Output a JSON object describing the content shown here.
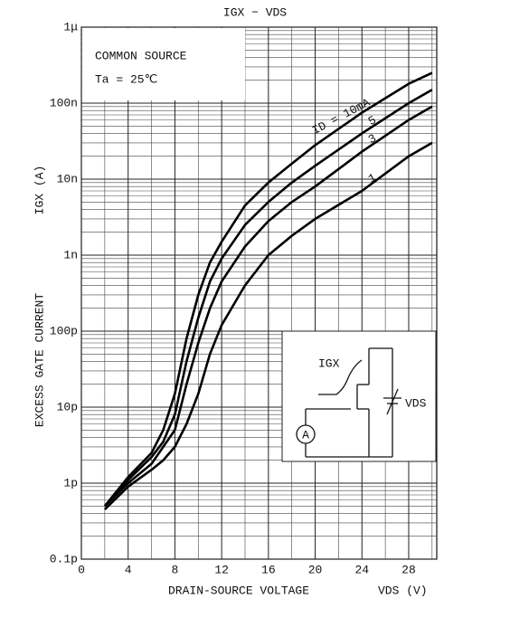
{
  "chart_data": {
    "type": "line",
    "title": "IGX − VDS",
    "x_label": "DRAIN-SOURCE VOLTAGE",
    "x_unit_label": "VDS (V)",
    "y_label": "EXCESS GATE CURRENT",
    "y_unit_label": "IGX (A)",
    "annotations": [
      "COMMON SOURCE",
      "Ta = 25℃"
    ],
    "inset_labels": [
      "IGX",
      "VDS",
      "A"
    ],
    "log_y": true,
    "grid": true,
    "xlim": [
      0,
      30.4
    ],
    "xticks": [
      0,
      4,
      8,
      12,
      16,
      20,
      24,
      28
    ],
    "ylim": [
      1e-13,
      1e-06
    ],
    "yticks": [
      {
        "value": 1e-13,
        "label": "0.1p"
      },
      {
        "value": 1e-12,
        "label": "1p"
      },
      {
        "value": 1e-11,
        "label": "10p"
      },
      {
        "value": 1e-10,
        "label": "100p"
      },
      {
        "value": 1e-09,
        "label": "1n"
      },
      {
        "value": 1e-08,
        "label": "10n"
      },
      {
        "value": 1e-07,
        "label": "100n"
      },
      {
        "value": 1e-06,
        "label": "1μ"
      }
    ],
    "x": [
      2,
      4,
      6,
      7,
      8,
      9,
      10,
      11,
      12,
      14,
      16,
      18,
      20,
      24,
      28,
      30
    ],
    "series": [
      {
        "name": "ID = 10mA",
        "color": "#000000",
        "values": [
          5e-13,
          1.2e-12,
          2.5e-12,
          5e-12,
          1.5e-11,
          8e-11,
          3e-10,
          8e-10,
          1.5e-09,
          4.5e-09,
          9e-09,
          1.6e-08,
          2.8e-08,
          7.5e-08,
          1.8e-07,
          2.5e-07
        ]
      },
      {
        "name": "5",
        "color": "#000000",
        "values": [
          5e-13,
          1.1e-12,
          2.2e-12,
          3.5e-12,
          8e-12,
          4e-11,
          1.5e-10,
          4.5e-10,
          9e-10,
          2.5e-09,
          5e-09,
          9e-09,
          1.5e-08,
          4e-08,
          1e-07,
          1.5e-07
        ]
      },
      {
        "name": "3",
        "color": "#000000",
        "values": [
          5e-13,
          1e-12,
          1.8e-12,
          3e-12,
          5e-12,
          2e-11,
          7e-11,
          2e-10,
          4.5e-10,
          1.3e-09,
          2.8e-09,
          5e-09,
          8e-09,
          2.3e-08,
          6e-08,
          9e-08
        ]
      },
      {
        "name": "1",
        "color": "#000000",
        "values": [
          4.5e-13,
          9e-13,
          1.5e-12,
          2e-12,
          3e-12,
          6e-12,
          1.5e-11,
          5e-11,
          1.2e-10,
          4e-10,
          1e-09,
          1.8e-09,
          3e-09,
          7e-09,
          2e-08,
          3e-08
        ]
      }
    ]
  }
}
